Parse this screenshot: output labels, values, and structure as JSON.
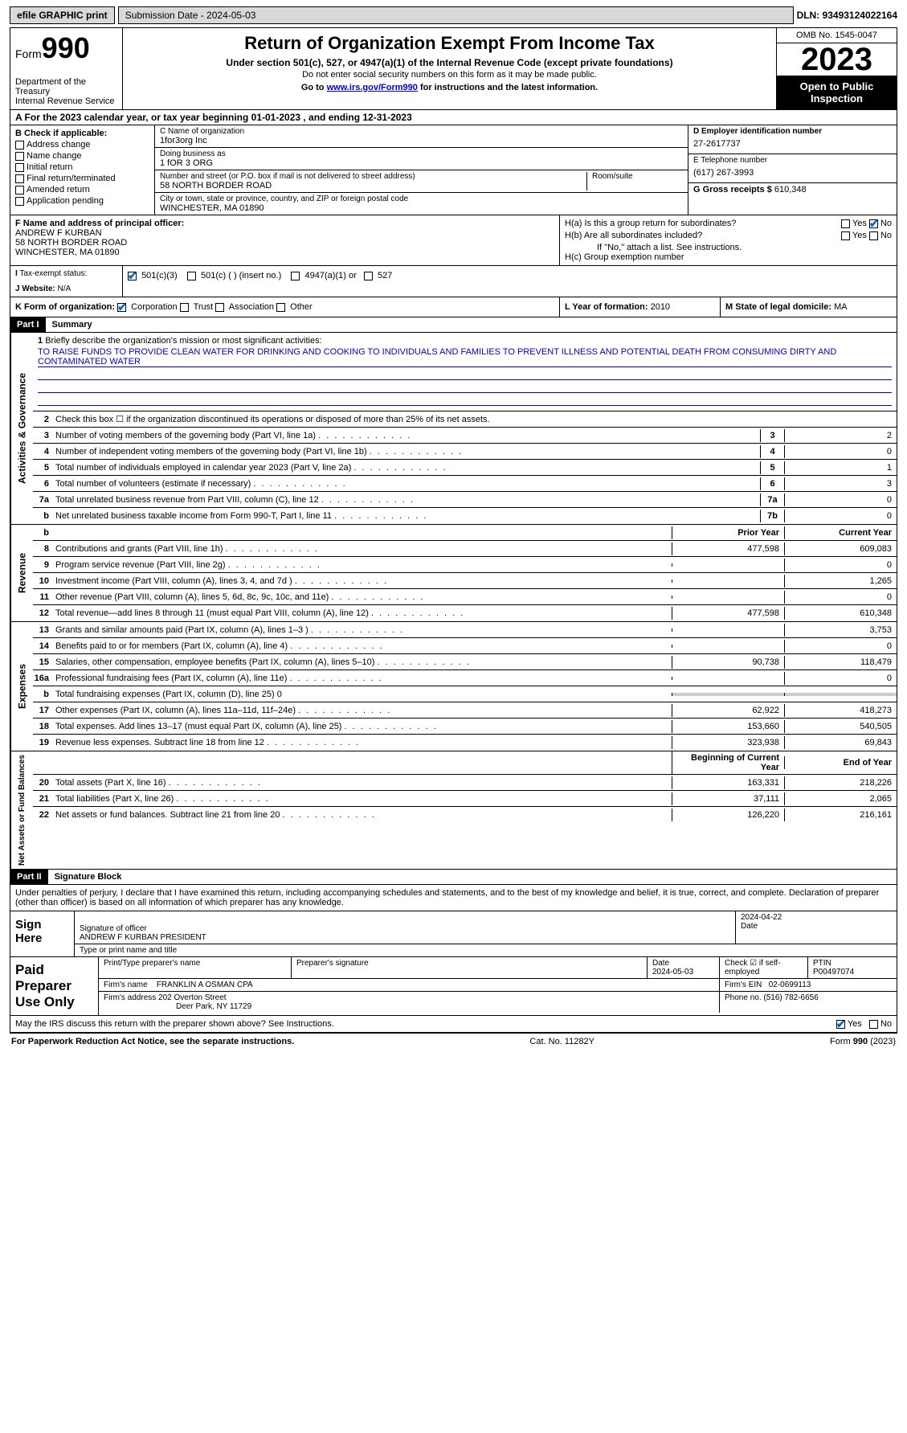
{
  "topbar": {
    "efile": "efile GRAPHIC print",
    "submission": "Submission Date - 2024-05-03",
    "dln": "DLN: 93493124022164"
  },
  "header": {
    "form_label": "Form",
    "form_num": "990",
    "dept": "Department of the Treasury\nInternal Revenue Service",
    "title": "Return of Organization Exempt From Income Tax",
    "sub1": "Under section 501(c), 527, or 4947(a)(1) of the Internal Revenue Code (except private foundations)",
    "sub2": "Do not enter social security numbers on this form as it may be made public.",
    "sub3_pre": "Go to ",
    "sub3_link": "www.irs.gov/Form990",
    "sub3_post": " for instructions and the latest information.",
    "omb": "OMB No. 1545-0047",
    "year": "2023",
    "open": "Open to Public Inspection"
  },
  "line_a": "A For the 2023 calendar year, or tax year beginning 01-01-2023    , and ending 12-31-2023",
  "box_b": {
    "label": "B Check if applicable:",
    "items": [
      "Address change",
      "Name change",
      "Initial return",
      "Final return/terminated",
      "Amended return",
      "Application pending"
    ]
  },
  "box_c": {
    "name_label": "C Name of organization",
    "name": "1for3org Inc",
    "dba_label": "Doing business as",
    "dba": "1 fOR 3 ORG",
    "street_label": "Number and street (or P.O. box if mail is not delivered to street address)",
    "street": "58 NORTH BORDER ROAD",
    "room_label": "Room/suite",
    "room": "",
    "city_label": "City or town, state or province, country, and ZIP or foreign postal code",
    "city": "WINCHESTER, MA  01890"
  },
  "box_d": {
    "label": "D Employer identification number",
    "value": "27-2617737",
    "e_label": "E Telephone number",
    "e_value": "(617) 267-3993",
    "g_label": "G Gross receipts $",
    "g_value": "610,348"
  },
  "box_f": {
    "label": "F  Name and address of principal officer:",
    "name": "ANDREW F KURBAN",
    "street": "58 NORTH BORDER ROAD",
    "city": "WINCHESTER, MA  01890"
  },
  "box_h": {
    "ha": "H(a)  Is this a group return for subordinates?",
    "hb": "H(b)  Are all subordinates included?",
    "hb_note": "If \"No,\" attach a list. See instructions.",
    "hc": "H(c)  Group exemption number",
    "yes": "Yes",
    "no": "No"
  },
  "box_i": {
    "label": "Tax-exempt status:",
    "opts": [
      "501(c)(3)",
      "501(c) (  ) (insert no.)",
      "4947(a)(1) or",
      "527"
    ]
  },
  "box_j": {
    "label": "Website:",
    "value": "N/A"
  },
  "box_k": {
    "label": "K Form of organization:",
    "opts": [
      "Corporation",
      "Trust",
      "Association",
      "Other"
    ]
  },
  "box_l": {
    "label": "L Year of formation:",
    "value": "2010"
  },
  "box_m": {
    "label": "M State of legal domicile:",
    "value": "MA"
  },
  "part1": {
    "tag": "Part I",
    "title": "Summary"
  },
  "mission": {
    "label": "Briefly describe the organization's mission or most significant activities:",
    "text": "TO RAISE FUNDS TO PROVIDE CLEAN WATER FOR DRINKING AND COOKING TO INDIVIDUALS AND FAMILIES TO PREVENT ILLNESS AND POTENTIAL DEATH FROM CONSUMING DIRTY AND CONTAMINATED WATER"
  },
  "vtabs": {
    "gov": "Activities & Governance",
    "rev": "Revenue",
    "exp": "Expenses",
    "net": "Net Assets or Fund Balances"
  },
  "gov_lines": [
    {
      "n": "2",
      "t": "Check this box ☐  if the organization discontinued its operations or disposed of more than 25% of its net assets."
    },
    {
      "n": "3",
      "t": "Number of voting members of the governing body (Part VI, line 1a)",
      "b": "3",
      "v": "2"
    },
    {
      "n": "4",
      "t": "Number of independent voting members of the governing body (Part VI, line 1b)",
      "b": "4",
      "v": "0"
    },
    {
      "n": "5",
      "t": "Total number of individuals employed in calendar year 2023 (Part V, line 2a)",
      "b": "5",
      "v": "1"
    },
    {
      "n": "6",
      "t": "Total number of volunteers (estimate if necessary)",
      "b": "6",
      "v": "3"
    },
    {
      "n": "7a",
      "t": "Total unrelated business revenue from Part VIII, column (C), line 12",
      "b": "7a",
      "v": "0"
    },
    {
      "n": "b",
      "t": "Net unrelated business taxable income from Form 990-T, Part I, line 11",
      "b": "7b",
      "v": "0"
    }
  ],
  "col_hdrs": {
    "prior": "Prior Year",
    "current": "Current Year",
    "begin": "Beginning of Current Year",
    "end": "End of Year"
  },
  "rev_lines": [
    {
      "n": "8",
      "t": "Contributions and grants (Part VIII, line 1h)",
      "p": "477,598",
      "c": "609,083"
    },
    {
      "n": "9",
      "t": "Program service revenue (Part VIII, line 2g)",
      "p": "",
      "c": "0"
    },
    {
      "n": "10",
      "t": "Investment income (Part VIII, column (A), lines 3, 4, and 7d )",
      "p": "",
      "c": "1,265"
    },
    {
      "n": "11",
      "t": "Other revenue (Part VIII, column (A), lines 5, 6d, 8c, 9c, 10c, and 11e)",
      "p": "",
      "c": "0"
    },
    {
      "n": "12",
      "t": "Total revenue—add lines 8 through 11 (must equal Part VIII, column (A), line 12)",
      "p": "477,598",
      "c": "610,348"
    }
  ],
  "exp_lines": [
    {
      "n": "13",
      "t": "Grants and similar amounts paid (Part IX, column (A), lines 1–3 )",
      "p": "",
      "c": "3,753"
    },
    {
      "n": "14",
      "t": "Benefits paid to or for members (Part IX, column (A), line 4)",
      "p": "",
      "c": "0"
    },
    {
      "n": "15",
      "t": "Salaries, other compensation, employee benefits (Part IX, column (A), lines 5–10)",
      "p": "90,738",
      "c": "118,479"
    },
    {
      "n": "16a",
      "t": "Professional fundraising fees (Part IX, column (A), line 11e)",
      "p": "",
      "c": "0"
    },
    {
      "n": "b",
      "t": "Total fundraising expenses (Part IX, column (D), line 25) 0",
      "gray": true
    },
    {
      "n": "17",
      "t": "Other expenses (Part IX, column (A), lines 11a–11d, 11f–24e)",
      "p": "62,922",
      "c": "418,273"
    },
    {
      "n": "18",
      "t": "Total expenses. Add lines 13–17 (must equal Part IX, column (A), line 25)",
      "p": "153,660",
      "c": "540,505"
    },
    {
      "n": "19",
      "t": "Revenue less expenses. Subtract line 18 from line 12",
      "p": "323,938",
      "c": "69,843"
    }
  ],
  "net_lines": [
    {
      "n": "20",
      "t": "Total assets (Part X, line 16)",
      "p": "163,331",
      "c": "218,226"
    },
    {
      "n": "21",
      "t": "Total liabilities (Part X, line 26)",
      "p": "37,111",
      "c": "2,065"
    },
    {
      "n": "22",
      "t": "Net assets or fund balances. Subtract line 21 from line 20",
      "p": "126,220",
      "c": "216,161"
    }
  ],
  "part2": {
    "tag": "Part II",
    "title": "Signature Block"
  },
  "perjury": "Under penalties of perjury, I declare that I have examined this return, including accompanying schedules and statements, and to the best of my knowledge and belief, it is true, correct, and complete. Declaration of preparer (other than officer) is based on all information of which preparer has any knowledge.",
  "sign": {
    "here": "Sign Here",
    "sig_label": "Signature of officer",
    "name": "ANDREW F KURBAN  PRESIDENT",
    "type_label": "Type or print name and title",
    "date_label": "Date",
    "date": "2024-04-22"
  },
  "paid": {
    "label": "Paid Preparer Use Only",
    "print_label": "Print/Type preparer's name",
    "sig_label": "Preparer's signature",
    "date_label": "Date",
    "date": "2024-05-03",
    "check_label": "Check ☑ if self-employed",
    "ptin_label": "PTIN",
    "ptin": "P00497074",
    "firm_name_label": "Firm's name",
    "firm_name": "FRANKLIN A OSMAN CPA",
    "firm_ein_label": "Firm's EIN",
    "firm_ein": "02-0699113",
    "firm_addr_label": "Firm's address",
    "firm_addr": "202 Overton Street",
    "firm_city": "Deer Park, NY  11729",
    "phone_label": "Phone no.",
    "phone": "(516) 782-6656"
  },
  "discuss": "May the IRS discuss this return with the preparer shown above? See Instructions.",
  "footer": {
    "left": "For Paperwork Reduction Act Notice, see the separate instructions.",
    "mid": "Cat. No. 11282Y",
    "right": "Form 990 (2023)"
  }
}
